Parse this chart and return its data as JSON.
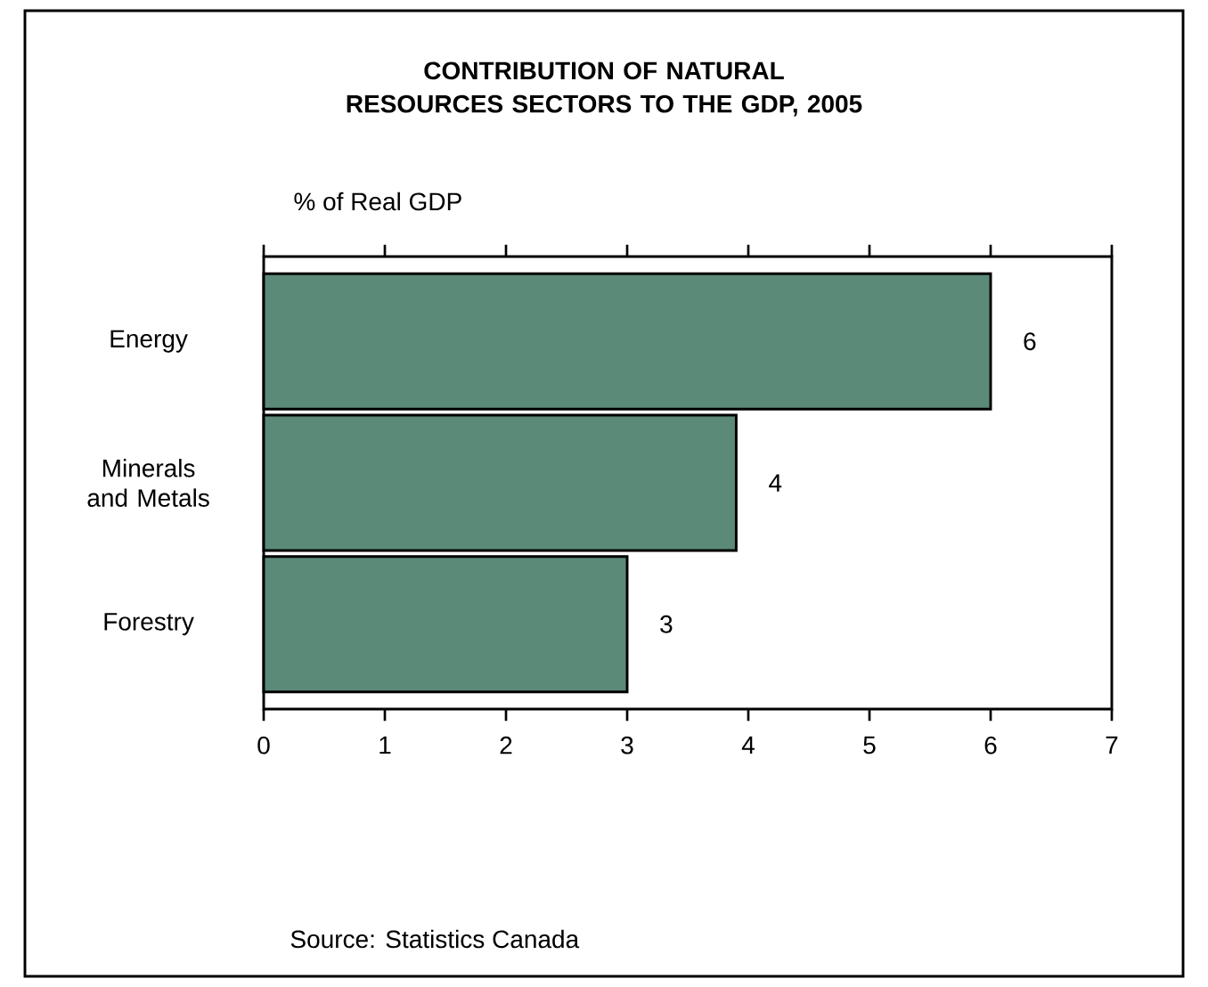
{
  "chart_data": {
    "type": "bar",
    "orientation": "horizontal",
    "title": "CONTRIBUTION OF NATURAL RESOURCES SECTORS TO THE GDP, 2005",
    "xlabel": "% of Real GDP",
    "categories": [
      "Energy",
      "Minerals and Metals",
      "Forestry"
    ],
    "values": [
      6.0,
      3.9,
      3.0
    ],
    "value_labels": [
      "6",
      "4",
      "3"
    ],
    "color": "#5b8a78",
    "xlim": [
      0,
      7
    ],
    "xticks": [
      0,
      1,
      2,
      3,
      4,
      5,
      6,
      7
    ],
    "annotations": [
      "Source: Statistics Canada"
    ]
  }
}
